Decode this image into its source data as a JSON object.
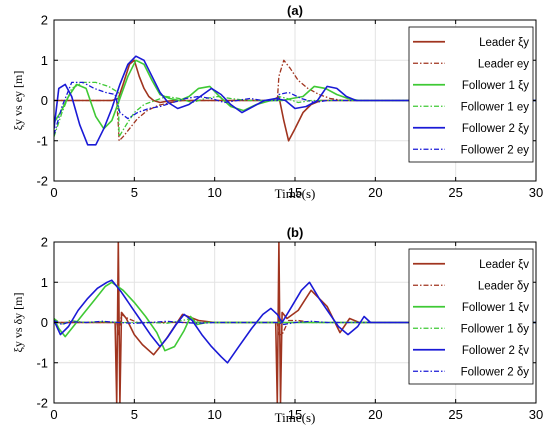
{
  "chart_data": [
    {
      "type": "line",
      "title": "(a)",
      "xlabel": "Time(s)",
      "ylabel": "ξy vs ey [m]",
      "xlim": [
        0,
        30
      ],
      "ylim": [
        -2,
        2
      ],
      "xticks": [
        0,
        5,
        10,
        15,
        20,
        25,
        30
      ],
      "yticks": [
        -2,
        -1,
        0,
        1,
        2
      ],
      "grid": true,
      "legend_position": "top-right",
      "series": [
        {
          "name": "Leader ξy",
          "color": "#a0341f",
          "style": "solid",
          "x": [
            0,
            3.6,
            4.0,
            4.3,
            4.7,
            5.0,
            5.3,
            5.6,
            5.9,
            6.2,
            6.6,
            7.0,
            7.5,
            8,
            13.6,
            14.0,
            14.3,
            14.6,
            15.0,
            15.5,
            16,
            16.6,
            17.2,
            18,
            30
          ],
          "y": [
            0,
            0,
            0.05,
            0.4,
            0.9,
            1.0,
            0.6,
            0.3,
            0.1,
            0,
            -0.05,
            -0.02,
            0,
            0,
            0,
            0.1,
            -0.5,
            -1.0,
            -0.7,
            -0.3,
            -0.1,
            0,
            0,
            0,
            0
          ]
        },
        {
          "name": "Leader ey",
          "color": "#a0341f",
          "style": "dashdot",
          "x": [
            0,
            3.9,
            4.0,
            4.05,
            4.3,
            4.7,
            5.2,
            5.8,
            6.5,
            7.3,
            8,
            13.9,
            14.0,
            14.3,
            14.7,
            15.2,
            15.8,
            16.5,
            17.2,
            18,
            30
          ],
          "y": [
            0,
            0,
            -0.6,
            -1.0,
            -0.9,
            -0.7,
            -0.45,
            -0.25,
            -0.12,
            -0.05,
            0,
            0,
            0.6,
            1.0,
            0.8,
            0.5,
            0.3,
            0.15,
            0.05,
            0,
            0
          ]
        },
        {
          "name": "Follower 1 ξy",
          "color": "#3fc935",
          "style": "solid",
          "x": [
            0,
            0.4,
            0.9,
            1.4,
            2.0,
            2.6,
            3.1,
            3.6,
            4.1,
            4.6,
            5.1,
            5.6,
            6.1,
            6.6,
            7.2,
            7.8,
            8.4,
            9.0,
            9.7,
            10.3,
            11.0,
            11.8,
            12.6,
            13.5,
            14.2,
            14.8,
            15.5,
            16.2,
            16.9,
            17.6,
            18.3,
            19,
            30
          ],
          "y": [
            -0.55,
            -0.3,
            0.1,
            0.4,
            0.3,
            -0.4,
            -0.7,
            -0.5,
            0.05,
            0.6,
            1.0,
            0.9,
            0.5,
            0.15,
            0.05,
            0,
            0.1,
            0.3,
            0.35,
            0.1,
            -0.15,
            -0.25,
            -0.1,
            0,
            0,
            0.05,
            0.1,
            0.35,
            0.3,
            0.15,
            0.05,
            0,
            0
          ]
        },
        {
          "name": "Follower 1 ey",
          "color": "#3fc935",
          "style": "dashdot",
          "x": [
            0,
            0.5,
            1.1,
            1.8,
            2.6,
            3.4,
            4.0,
            4.05,
            4.5,
            5.0,
            5.6,
            6.3,
            7.0,
            7.8,
            8.6,
            9.4,
            10.2,
            11.0,
            12,
            13.9,
            14.0,
            14.5,
            15.2,
            16.0,
            17.0,
            18,
            30
          ],
          "y": [
            -0.9,
            -0.3,
            0.3,
            0.45,
            0.45,
            0.35,
            0.2,
            -0.9,
            -0.6,
            -0.3,
            -0.1,
            0,
            0.1,
            0.05,
            -0.05,
            0.05,
            0.1,
            0.05,
            0,
            0,
            0.1,
            0.05,
            -0.05,
            0,
            0,
            0,
            0
          ]
        },
        {
          "name": "Follower 2 ξy",
          "color": "#1a1ad6",
          "style": "solid",
          "x": [
            0,
            0.3,
            0.7,
            1.1,
            1.6,
            2.1,
            2.6,
            3.1,
            3.6,
            4.1,
            4.6,
            5.1,
            5.6,
            6.1,
            6.6,
            7.1,
            7.7,
            8.4,
            9.1,
            9.8,
            10.4,
            11.0,
            11.7,
            12.4,
            13.1,
            13.8,
            14.4,
            15.0,
            15.7,
            16.4,
            17.0,
            17.6,
            18.2,
            18.8,
            30
          ],
          "y": [
            -0.7,
            0.3,
            0.4,
            0.1,
            -0.6,
            -1.1,
            -1.1,
            -0.7,
            -0.2,
            0.4,
            0.9,
            1.1,
            1.0,
            0.6,
            0.2,
            -0.05,
            -0.2,
            -0.1,
            0.1,
            0.3,
            0.15,
            -0.1,
            -0.3,
            -0.15,
            0,
            0.05,
            0,
            -0.2,
            -0.15,
            0,
            0.35,
            0.3,
            0.1,
            0,
            0
          ]
        },
        {
          "name": "Follower 2 ey",
          "color": "#1a1ad6",
          "style": "dashdot",
          "x": [
            0,
            0.5,
            1.1,
            1.8,
            2.5,
            3.2,
            3.8,
            4.1,
            4.6,
            5.2,
            5.9,
            6.6,
            7.4,
            8.2,
            9.0,
            9.8,
            10.6,
            11.4,
            12.2,
            13,
            13.9,
            14.0,
            14.6,
            15.4,
            16.2,
            17.0,
            18,
            30
          ],
          "y": [
            -0.85,
            -0.15,
            0.45,
            0.45,
            0.3,
            0.2,
            0.15,
            -0.3,
            -0.45,
            -0.3,
            -0.2,
            -0.15,
            -0.05,
            0.05,
            0.1,
            0.05,
            -0.05,
            0,
            0.05,
            0,
            0,
            0.15,
            0.2,
            0.05,
            -0.05,
            0,
            0,
            0
          ]
        }
      ]
    },
    {
      "type": "line",
      "title": "(b)",
      "xlabel": "Time(s)",
      "ylabel": "ξy vs δy [m]",
      "xlim": [
        0,
        30
      ],
      "ylim": [
        -2,
        2
      ],
      "xticks": [
        0,
        5,
        10,
        15,
        20,
        25,
        30
      ],
      "yticks": [
        -2,
        -1,
        0,
        1,
        2
      ],
      "grid": true,
      "legend_position": "top-right",
      "series": [
        {
          "name": "Leader ξv",
          "color": "#a0341f",
          "style": "solid",
          "x": [
            0,
            3.8,
            3.9,
            4.0,
            4.1,
            4.2,
            4.5,
            5.0,
            5.5,
            6.2,
            7.0,
            8.0,
            9.0,
            10,
            13.8,
            13.9,
            14.0,
            14.1,
            14.2,
            14.5,
            15.2,
            16.0,
            17.0,
            17.8,
            18.4,
            19,
            30
          ],
          "y": [
            0,
            0,
            -2,
            2,
            -2,
            0.25,
            0.1,
            -0.3,
            -0.55,
            -0.8,
            -0.4,
            0.2,
            0.05,
            0,
            0,
            -2,
            2,
            -2,
            0.25,
            0.1,
            0.3,
            0.8,
            0.4,
            -0.25,
            0.1,
            0,
            0
          ]
        },
        {
          "name": "Leader δy",
          "color": "#a0341f",
          "style": "dashdot",
          "x": [
            0,
            3.9,
            4.0,
            4.2,
            4.6,
            5.2,
            6,
            13.9,
            14.0,
            14.2,
            14.6,
            15.2,
            16,
            30
          ],
          "y": [
            0,
            0,
            -0.3,
            0.2,
            0.1,
            0,
            0,
            0,
            -0.3,
            -0.3,
            0.05,
            0.05,
            0,
            0
          ]
        },
        {
          "name": "Follower 1 ξv",
          "color": "#3fc935",
          "style": "solid",
          "x": [
            0,
            0.3,
            0.7,
            1.2,
            1.8,
            2.5,
            3.2,
            3.6,
            4.3,
            5.0,
            5.7,
            6.4,
            6.9,
            7.5,
            8.1,
            8.5,
            8.9,
            9.5,
            10,
            30
          ],
          "y": [
            0.1,
            -0.15,
            -0.35,
            -0.1,
            0.2,
            0.55,
            0.9,
            1.0,
            0.8,
            0.5,
            0.15,
            -0.25,
            -0.7,
            -0.6,
            -0.2,
            0.15,
            -0.05,
            0,
            0,
            0
          ]
        },
        {
          "name": "Follower 1 δy",
          "color": "#3fc935",
          "style": "dashdot",
          "x": [
            0,
            0.5,
            1.0,
            2.0,
            3.0,
            4.0,
            5.0,
            6.0,
            7.0,
            8.0,
            8.5,
            9.0,
            10,
            30
          ],
          "y": [
            0.1,
            -0.05,
            0.05,
            0,
            0.02,
            0,
            0,
            0,
            -0.02,
            0.05,
            0.1,
            0,
            0,
            0
          ]
        },
        {
          "name": "Follower 2 ξv",
          "color": "#1a1ad6",
          "style": "solid",
          "x": [
            0,
            0.4,
            0.9,
            1.5,
            2.1,
            2.7,
            3.3,
            3.6,
            4.2,
            4.8,
            5.4,
            6.0,
            6.6,
            7.1,
            7.6,
            8.1,
            8.6,
            9.2,
            9.8,
            10.4,
            10.8,
            11.5,
            12.3,
            13.0,
            13.5,
            13.9,
            14.2,
            14.8,
            15.4,
            15.9,
            16.5,
            17.1,
            17.7,
            18.3,
            18.9,
            19.3,
            19.7,
            20.1,
            30
          ],
          "y": [
            0.05,
            -0.3,
            -0.1,
            0.3,
            0.6,
            0.85,
            1.0,
            1.05,
            0.75,
            0.4,
            0.05,
            -0.3,
            -0.6,
            -0.35,
            -0.05,
            0.2,
            0.05,
            -0.3,
            -0.6,
            -0.85,
            -1.0,
            -0.6,
            -0.15,
            0.2,
            0.35,
            0.2,
            0,
            0.4,
            0.8,
            1.0,
            0.6,
            0.25,
            -0.1,
            -0.3,
            -0.1,
            0.15,
            0,
            0,
            0
          ]
        },
        {
          "name": "Follower 2 δy",
          "color": "#1a1ad6",
          "style": "dashdot",
          "x": [
            0,
            0.5,
            1.0,
            2.0,
            3.0,
            4.0,
            5.0,
            6.0,
            7.0,
            8.0,
            9.0,
            10.0,
            12.0,
            14.0,
            14.3,
            15.0,
            16.0,
            17.0,
            18,
            30
          ],
          "y": [
            0.05,
            -0.05,
            0.02,
            0,
            0.03,
            0,
            -0.02,
            0,
            0.03,
            0,
            -0.02,
            0,
            0,
            0,
            -0.05,
            0,
            0.03,
            0,
            0,
            0
          ]
        }
      ]
    }
  ]
}
